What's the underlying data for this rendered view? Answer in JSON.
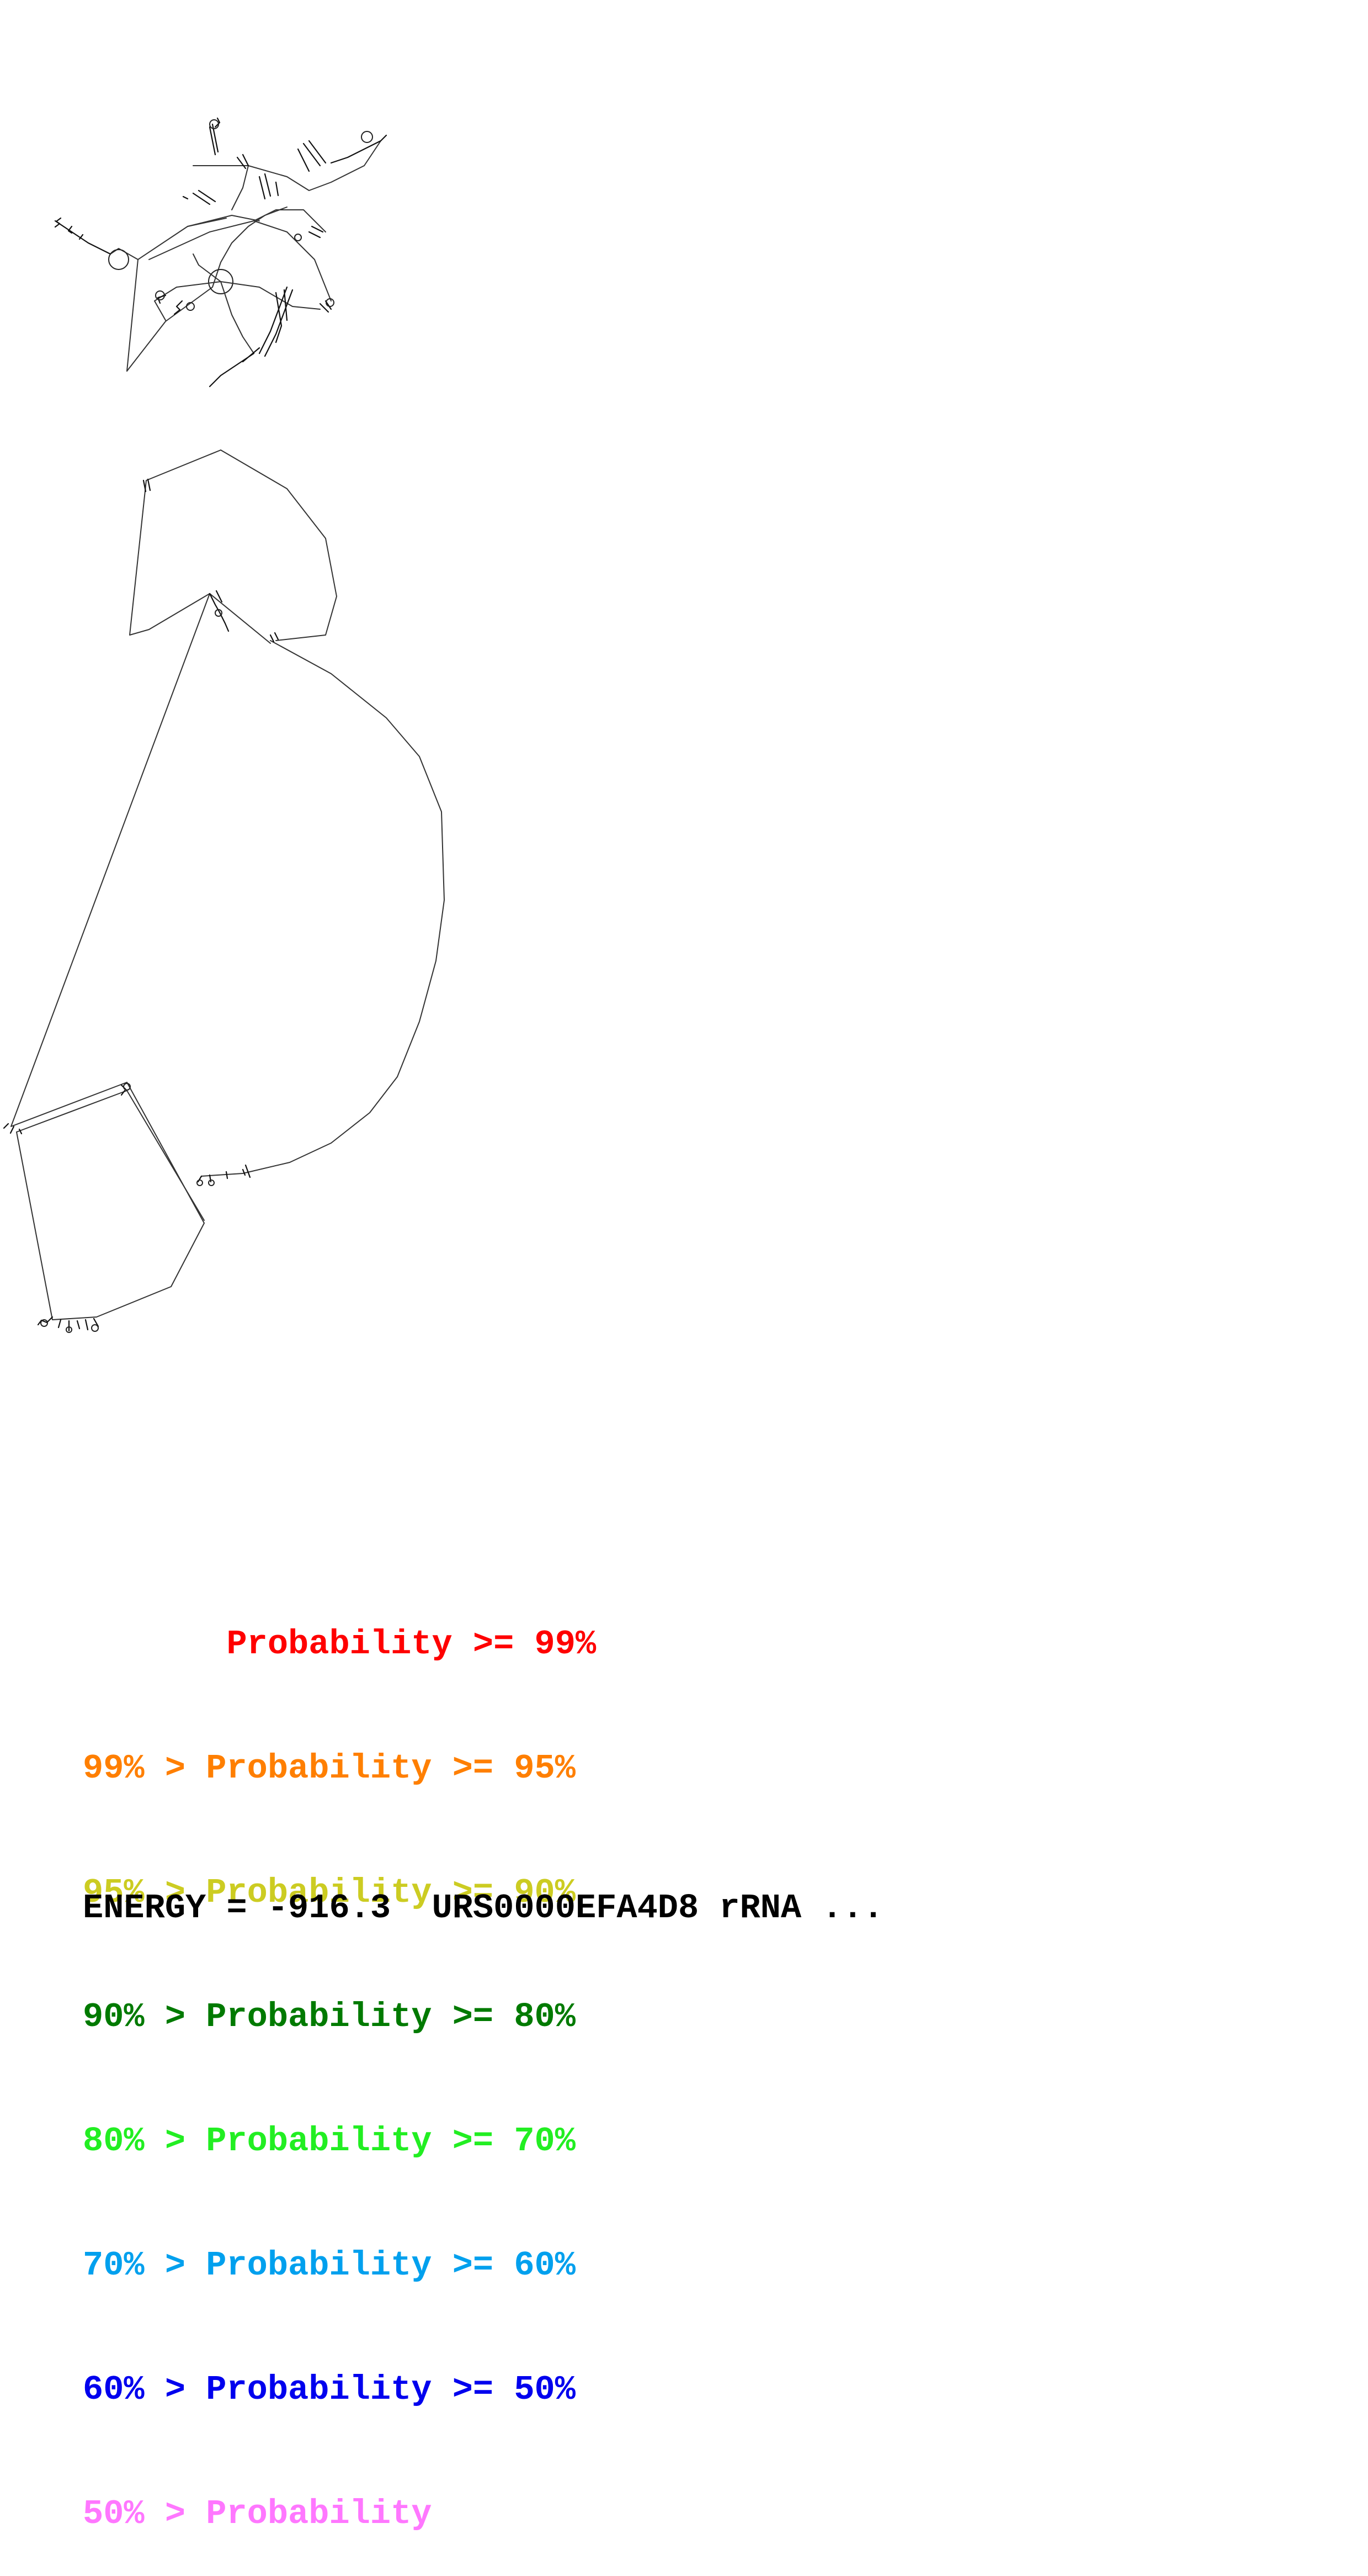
{
  "legend": {
    "items": [
      {
        "text": "       Probability >= 99%",
        "color": "#ff0000"
      },
      {
        "text": "99% > Probability >= 95%",
        "color": "#ff7f00"
      },
      {
        "text": "95% > Probability >= 90%",
        "color": "#cccc22"
      },
      {
        "text": "90% > Probability >= 80%",
        "color": "#007a00"
      },
      {
        "text": "80% > Probability >= 70%",
        "color": "#22ee22"
      },
      {
        "text": "70% > Probability >= 60%",
        "color": "#00a0ee"
      },
      {
        "text": "60% > Probability >= 50%",
        "color": "#0000ee"
      },
      {
        "text": "50% > Probability",
        "color": "#ff77ff"
      }
    ]
  },
  "footer": {
    "energy_line": "ENERGY = -916.3  URS0000EFA4D8 rRNA ..."
  }
}
